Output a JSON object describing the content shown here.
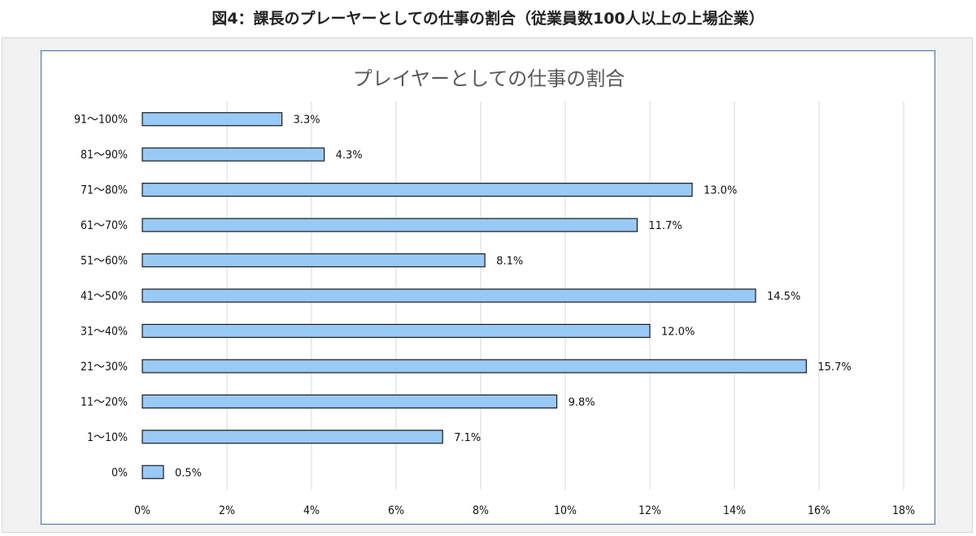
{
  "page": {
    "title": "図4：課長のプレーヤーとしての仕事の割合（従業員数100人以上の上場企業）"
  },
  "chart_data": {
    "type": "bar",
    "orientation": "horizontal",
    "title": "プレイヤーとしての仕事の割合",
    "xlabel": "",
    "ylabel": "",
    "categories": [
      "91～100%",
      "81～90%",
      "71～80%",
      "61～70%",
      "51～60%",
      "41～50%",
      "31～40%",
      "21～30%",
      "11～20%",
      "1～10%",
      "0%"
    ],
    "values": [
      3.3,
      4.3,
      13.0,
      11.7,
      8.1,
      14.5,
      12.0,
      15.7,
      9.8,
      7.1,
      0.5
    ],
    "value_labels": [
      "3.3%",
      "4.3%",
      "13.0%",
      "11.7%",
      "8.1%",
      "14.5%",
      "12.0%",
      "15.7%",
      "9.8%",
      "7.1%",
      "0.5%"
    ],
    "xlim": [
      0,
      18
    ],
    "x_ticks": [
      0,
      2,
      4,
      6,
      8,
      10,
      12,
      14,
      16,
      18
    ],
    "x_tick_labels": [
      "0%",
      "2%",
      "4%",
      "6%",
      "8%",
      "10%",
      "12%",
      "14%",
      "16%",
      "18%"
    ],
    "grid": true,
    "legend": "none",
    "colors": {
      "bar_fill": "#99c9f5",
      "bar_stroke": "#1a1a1a",
      "grid": "#d9d9d9",
      "frame": "#3f6fa8"
    }
  }
}
